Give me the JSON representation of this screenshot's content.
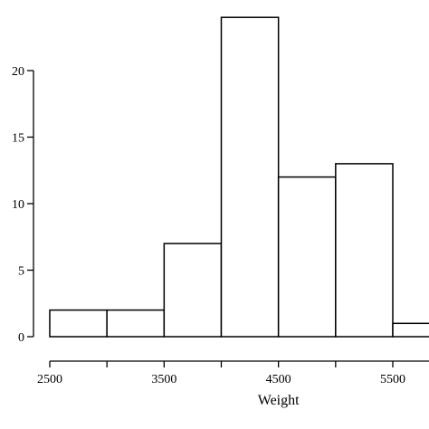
{
  "chart_data": {
    "type": "bar",
    "xlabel": "Weight",
    "ylabel": "",
    "bins": [
      {
        "start": 2500,
        "end": 3000,
        "count": 2
      },
      {
        "start": 3000,
        "end": 3500,
        "count": 2
      },
      {
        "start": 3500,
        "end": 4000,
        "count": 7
      },
      {
        "start": 4000,
        "end": 4500,
        "count": 24
      },
      {
        "start": 4500,
        "end": 5000,
        "count": 12
      },
      {
        "start": 5000,
        "end": 5500,
        "count": 13
      },
      {
        "start": 5500,
        "end": 6000,
        "count": 1
      }
    ],
    "x_ticks": [
      2500,
      3000,
      3500,
      4000,
      4500,
      5000,
      5500
    ],
    "x_tick_labels": [
      "2500",
      "",
      "3500",
      "",
      "4500",
      "",
      "5500"
    ],
    "y_ticks": [
      0,
      5,
      10,
      15,
      20
    ],
    "y_tick_labels": [
      "0",
      "5",
      "10",
      "15",
      "20"
    ],
    "xlim": [
      2500,
      6000
    ],
    "ylim": [
      0,
      24
    ],
    "grid": false,
    "colors": {
      "bar_fill": "#ffffff",
      "bar_stroke": "#000000",
      "axis": "#000000"
    }
  }
}
